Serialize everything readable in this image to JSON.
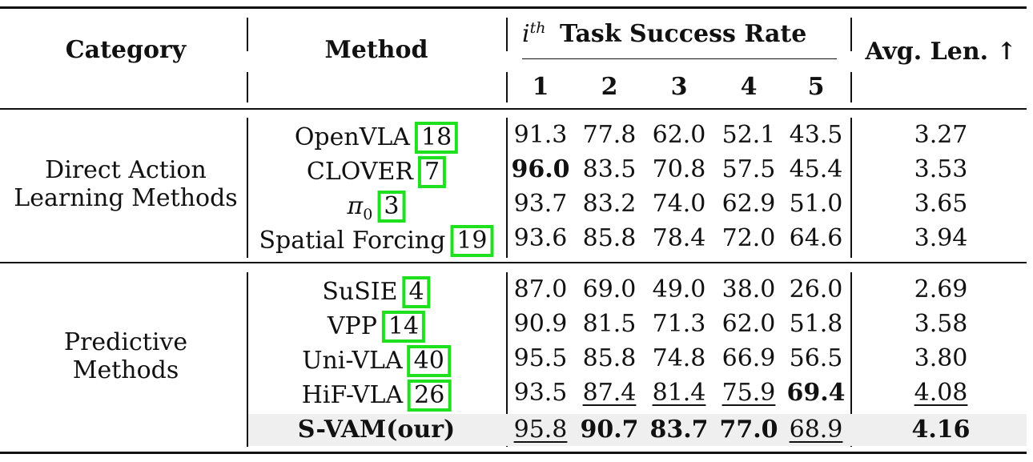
{
  "header": {
    "category": "Category",
    "method": "Method",
    "task_group": "Task Success Rate",
    "task_prefix": "i",
    "task_sup": "th",
    "avg": "Avg. Len. ↑",
    "tasks": [
      "1",
      "2",
      "3",
      "4",
      "5"
    ]
  },
  "groups": [
    {
      "name_line1": "Direct Action",
      "name_line2": "Learning Methods",
      "rows": [
        {
          "method": "OpenVLA",
          "cite": "18",
          "vals": [
            "91.3",
            "77.8",
            "62.0",
            "52.1",
            "43.5"
          ],
          "avg": "3.27"
        },
        {
          "method": "CLOVER",
          "cite": "7",
          "vals": [
            "96.0",
            "83.5",
            "70.8",
            "57.5",
            "45.4"
          ],
          "avg": "3.53"
        },
        {
          "method": "π",
          "method_sub": "0",
          "cite": "3",
          "vals": [
            "93.7",
            "83.2",
            "74.0",
            "62.9",
            "51.0"
          ],
          "avg": "3.65"
        },
        {
          "method": "Spatial Forcing",
          "cite": "19",
          "vals": [
            "93.6",
            "85.8",
            "78.4",
            "72.0",
            "64.6"
          ],
          "avg": "3.94"
        }
      ]
    },
    {
      "name_line1": "Predictive",
      "name_line2": "Methods",
      "rows": [
        {
          "method": "SuSIE",
          "cite": "4",
          "vals": [
            "87.0",
            "69.0",
            "49.0",
            "38.0",
            "26.0"
          ],
          "avg": "2.69"
        },
        {
          "method": "VPP",
          "cite": "14",
          "vals": [
            "90.9",
            "81.5",
            "71.3",
            "62.0",
            "51.8"
          ],
          "avg": "3.58"
        },
        {
          "method": "Uni-VLA",
          "cite": "40",
          "vals": [
            "95.5",
            "85.8",
            "74.8",
            "66.9",
            "56.5"
          ],
          "avg": "3.80"
        },
        {
          "method": "HiF-VLA",
          "cite": "26",
          "vals": [
            "93.5",
            "87.4",
            "81.4",
            "75.9",
            "69.4"
          ],
          "avg": "4.08"
        },
        {
          "method": "S-VAM(our)",
          "vals": [
            "95.8",
            "90.7",
            "83.7",
            "77.0",
            "68.9"
          ],
          "avg": "4.16"
        }
      ]
    }
  ]
}
